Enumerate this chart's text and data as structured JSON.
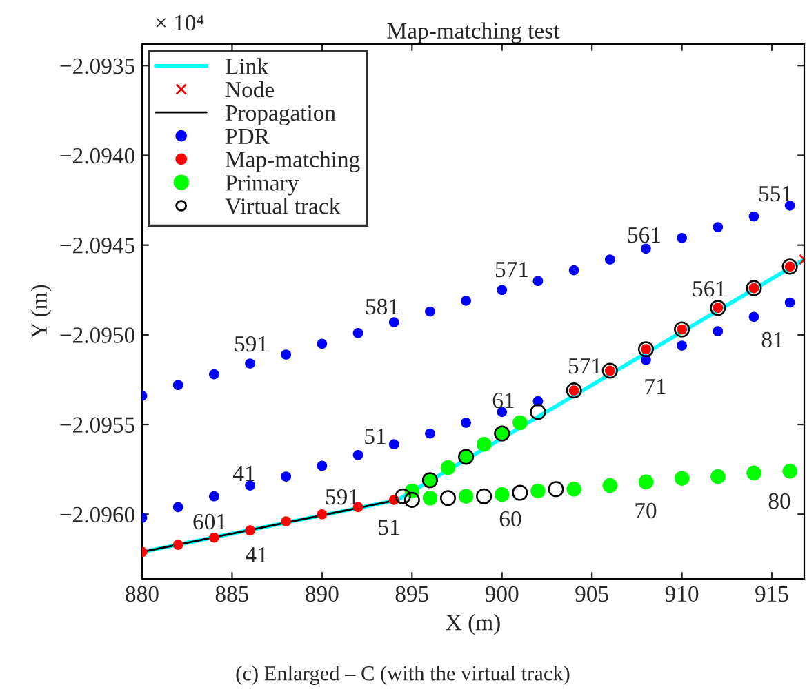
{
  "chart_data": {
    "type": "scatter",
    "title": "Map-matching test",
    "xlabel": "X (m)",
    "ylabel": "Y (m)",
    "xlim": [
      880,
      916.8
    ],
    "ylim": [
      -2.09636,
      -2.09338
    ],
    "xticks": [
      880,
      885,
      890,
      895,
      900,
      905,
      910,
      915
    ],
    "yticks": [
      {
        "value": -2.0935,
        "label": "−2.0935"
      },
      {
        "value": -2.094,
        "label": "−2.0940"
      },
      {
        "value": -2.0945,
        "label": "−2.0945"
      },
      {
        "value": -2.095,
        "label": "−2.0950"
      },
      {
        "value": -2.0955,
        "label": "−2.0955"
      },
      {
        "value": -2.096,
        "label": "−2.0960"
      }
    ],
    "grid": false,
    "legend": "top left",
    "series": [
      {
        "name": "Link",
        "type": "line",
        "color": "#00ffff",
        "marker": "none",
        "line_style": "solid",
        "x": [
          880,
          894.2,
          916.8
        ],
        "values": [
          -2.09621,
          -2.09592,
          -2.09458
        ]
      },
      {
        "name": "Node",
        "color": "#ff0000",
        "marker": "cross",
        "x": [
          916.8
        ],
        "values": [
          -2.09458
        ]
      },
      {
        "name": "Propagation",
        "type": "line",
        "color": "#000000",
        "marker": "none",
        "line_style": "solid",
        "x": [
          880,
          894.2
        ],
        "values": [
          -2.09621,
          -2.09592
        ]
      },
      {
        "name": "PDR",
        "color": "#0000ff",
        "marker": "circle",
        "x": [
          880,
          882,
          884,
          886,
          888,
          890,
          892,
          894,
          896,
          898,
          900,
          902,
          904,
          906,
          908,
          910,
          912,
          914,
          916,
          880,
          882,
          884,
          886,
          888,
          890,
          892,
          894,
          896,
          898,
          900,
          902,
          904,
          906,
          908,
          910,
          912,
          914,
          916
        ],
        "values": [
          -2.09534,
          -2.09528,
          -2.09522,
          -2.09516,
          -2.09511,
          -2.09505,
          -2.09499,
          -2.09493,
          -2.09487,
          -2.09481,
          -2.09475,
          -2.0947,
          -2.09464,
          -2.09458,
          -2.09452,
          -2.09446,
          -2.0944,
          -2.09434,
          -2.09428,
          -2.09602,
          -2.09596,
          -2.0959,
          -2.09584,
          -2.09579,
          -2.09573,
          -2.09567,
          -2.09561,
          -2.09555,
          -2.09549,
          -2.09543,
          -2.09537,
          null,
          null,
          -2.09514,
          -2.09506,
          -2.09498,
          -2.0949,
          -2.09482
        ]
      },
      {
        "name": "Map-matching",
        "color": "#ff0000",
        "marker": "circle",
        "x": [
          880,
          882,
          884,
          886,
          888,
          890,
          892,
          894,
          904,
          906,
          908,
          910,
          912,
          914,
          916
        ],
        "values": [
          -2.09621,
          -2.09617,
          -2.09613,
          -2.09609,
          -2.09604,
          -2.096,
          -2.09596,
          -2.09592,
          -2.09531,
          -2.0952,
          -2.09508,
          -2.09497,
          -2.09485,
          -2.09474,
          -2.09462
        ]
      },
      {
        "name": "Primary",
        "color": "#00ff00",
        "marker": "circle",
        "x": [
          895,
          896,
          897,
          898,
          899,
          900,
          901,
          896,
          898,
          900,
          902,
          904,
          906,
          908,
          910,
          912,
          914,
          916
        ],
        "values": [
          -2.09587,
          -2.09581,
          -2.09574,
          -2.09568,
          -2.09561,
          -2.09555,
          -2.09549,
          -2.09591,
          -2.0959,
          -2.09589,
          -2.09587,
          -2.09586,
          -2.09584,
          -2.09582,
          -2.0958,
          -2.09579,
          -2.09577,
          -2.09576
        ]
      },
      {
        "name": "Virtual track",
        "color": "#000000",
        "marker": "circle",
        "x": [
          894.5,
          896,
          898,
          900,
          902,
          904,
          906,
          908,
          910,
          912,
          914,
          916,
          895,
          897,
          899,
          901,
          903
        ],
        "values": [
          -2.0959,
          -2.09581,
          -2.09568,
          -2.09555,
          -2.09543,
          -2.09531,
          -2.0952,
          -2.09508,
          -2.09497,
          -2.09485,
          -2.09474,
          -2.09462,
          -2.09592,
          -2.09591,
          -2.0959,
          -2.09588,
          -2.09586
        ]
      }
    ],
    "annotations": [
      "× 10⁴",
      "(c) Enlarged – C (with the virtual track)",
      "551",
      "561",
      "571",
      "581",
      "591",
      "561",
      "81",
      "571",
      "71",
      "61",
      "51",
      "41",
      "591",
      "601",
      "41",
      "51",
      "60",
      "70",
      "80"
    ]
  }
}
